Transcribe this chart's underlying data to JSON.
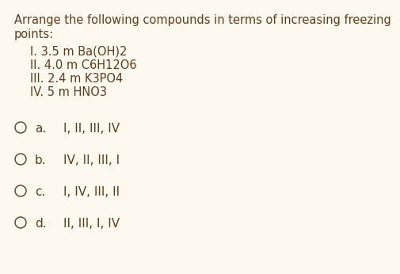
{
  "background_color": "#fef9ee",
  "text_color": "#5c3d1e",
  "title_lines": [
    "Arrange the following compounds in terms of increasing freezing",
    "points:"
  ],
  "compounds": [
    "I. 3.5 m Ba(OH)2",
    "II. 4.0 m C6H12O6",
    "III. 2.4 m K3PO4",
    "IV. 5 m HNO3"
  ],
  "options": [
    [
      "a.",
      "I, II, III, IV"
    ],
    [
      "b.",
      "IV, II, III, I"
    ],
    [
      "c.",
      "I, IV, III, II"
    ],
    [
      "d.",
      "II, III, I, IV"
    ]
  ],
  "title_fontsize": 10.5,
  "compound_fontsize": 10.5,
  "option_label_fontsize": 11.0,
  "option_answer_fontsize": 11.0,
  "font_family": "DejaVu Sans"
}
